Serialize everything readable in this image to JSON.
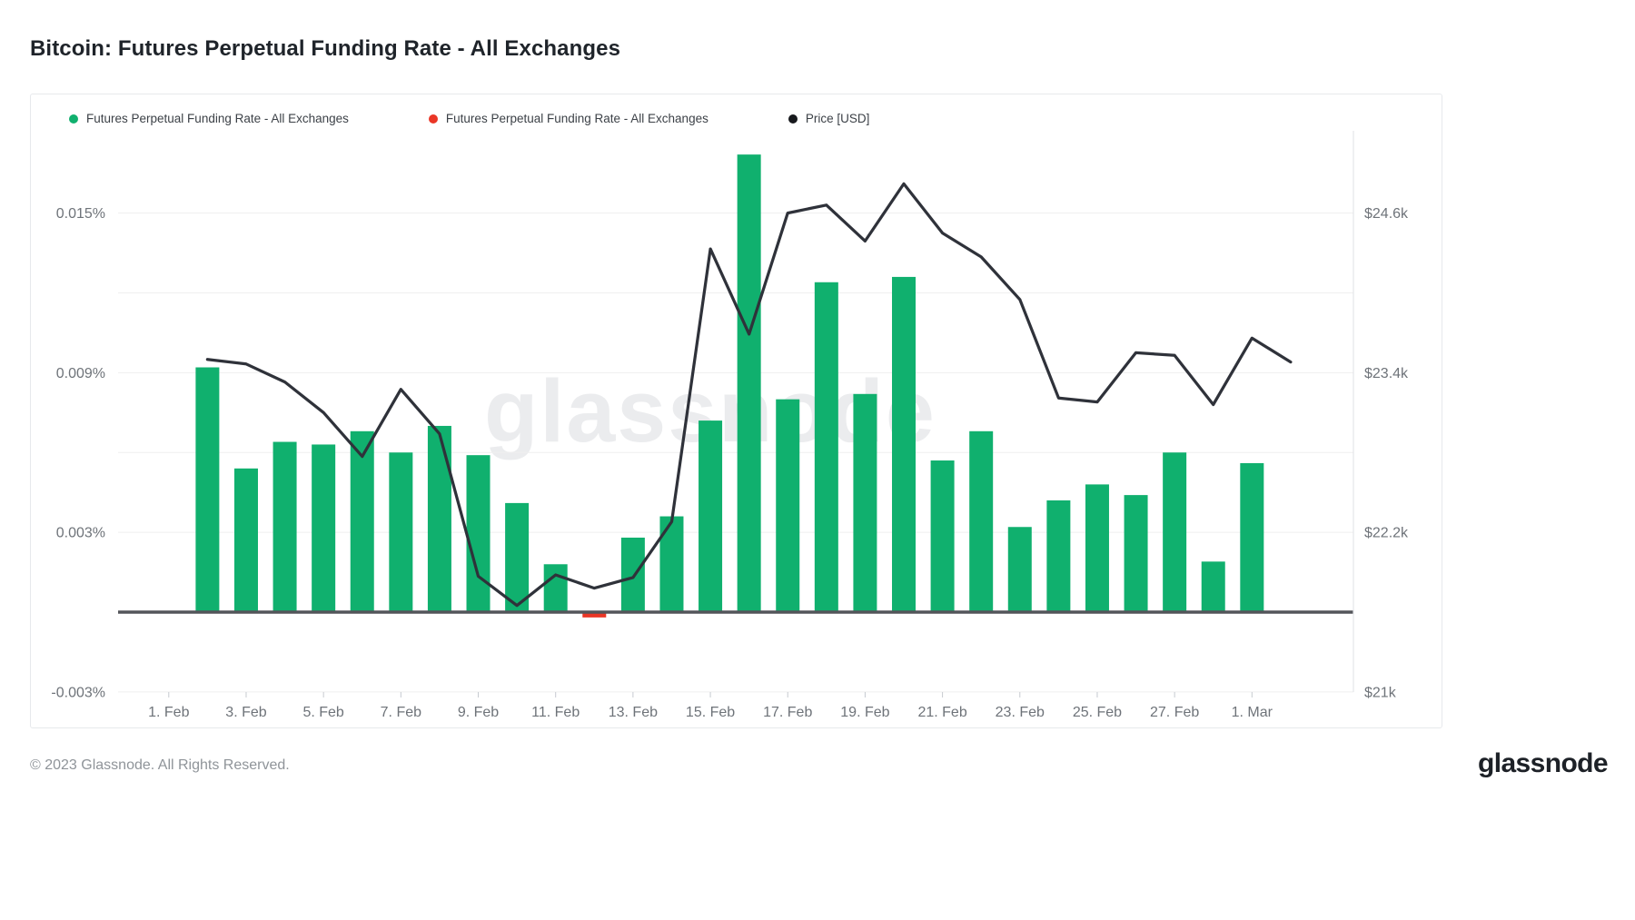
{
  "page": {
    "title": "Bitcoin: Futures Perpetual Funding Rate - All Exchanges",
    "footer_copyright": "© 2023 Glassnode. All Rights Reserved.",
    "brand_logo": "glassnode",
    "watermark": "glassnode"
  },
  "legend": {
    "items": [
      {
        "label": "Futures Perpetual Funding Rate - All Exchanges",
        "color": "#10b06e"
      },
      {
        "label": "Futures Perpetual Funding Rate - All Exchanges",
        "color": "#ea3626"
      },
      {
        "label": "Price [USD]",
        "color": "#17191d"
      }
    ]
  },
  "colors": {
    "bar_positive": "#10b06e",
    "bar_negative": "#ea3626",
    "price_line": "#2f323a",
    "gridline": "#efefef",
    "baseline": "#53555a",
    "plot_border": "#e4e6e9",
    "tick": "#c6cad0",
    "axis_text": "#6e7379",
    "watermark": "#ebecee"
  },
  "chart_data": {
    "type": "bar",
    "title": "Bitcoin: Futures Perpetual Funding Rate - All Exchanges",
    "grid": true,
    "legend_position": "top-left",
    "x_axis": {
      "tick_labels": [
        "1. Feb",
        "3. Feb",
        "5. Feb",
        "7. Feb",
        "9. Feb",
        "11. Feb",
        "13. Feb",
        "15. Feb",
        "17. Feb",
        "19. Feb",
        "21. Feb",
        "23. Feb",
        "25. Feb",
        "27. Feb",
        "1. Mar"
      ],
      "tick_day_offsets": [
        0,
        2,
        4,
        6,
        8,
        10,
        12,
        14,
        16,
        18,
        20,
        22,
        24,
        26,
        28
      ]
    },
    "left_axis": {
      "name": "Futures Perpetual Funding Rate - All Exchanges",
      "unit": "%",
      "tick_labels": [
        "0.015%",
        "0.009%",
        "0.003%",
        "-0.003%"
      ],
      "range_pct": [
        -0.0045,
        0.0181
      ]
    },
    "right_axis": {
      "name": "Price [USD]",
      "tick_labels": [
        "$24.6k",
        "$23.4k",
        "$22.2k",
        "$21k"
      ],
      "range_usd": [
        20400,
        25800
      ]
    },
    "y_gridlines": [
      {
        "pct": 0.015,
        "left": "0.015%",
        "right": "$24.6k"
      },
      {
        "pct": 0.012
      },
      {
        "pct": 0.009,
        "left": "0.009%",
        "right": "$23.4k"
      },
      {
        "pct": 0.006
      },
      {
        "pct": 0.003,
        "left": "0.003%",
        "right": "$22.2k"
      },
      {
        "pct": -0.003,
        "left": "-0.003%",
        "right": "$21k"
      }
    ],
    "series": [
      {
        "name": "Futures Perpetual Funding Rate - All Exchanges",
        "type": "bar",
        "unit": "percent",
        "dates": [
          "2. Feb",
          "3. Feb",
          "4. Feb",
          "5. Feb",
          "6. Feb",
          "7. Feb",
          "8. Feb",
          "9. Feb",
          "10. Feb",
          "11. Feb",
          "12. Feb",
          "13. Feb",
          "14. Feb",
          "15. Feb",
          "16. Feb",
          "17. Feb",
          "18. Feb",
          "19. Feb",
          "20. Feb",
          "21. Feb",
          "22. Feb",
          "23. Feb",
          "24. Feb",
          "25. Feb",
          "26. Feb",
          "27. Feb",
          "28. Feb",
          "1. Mar"
        ],
        "values_pct": [
          0.0092,
          0.0054,
          0.0064,
          0.0063,
          0.0068,
          0.006,
          0.007,
          0.0059,
          0.0041,
          0.0018,
          -0.0002,
          0.0028,
          0.0036,
          0.0072,
          0.0172,
          0.008,
          0.0124,
          0.0082,
          0.0126,
          0.0057,
          0.0068,
          0.0032,
          0.0042,
          0.0048,
          0.0044,
          0.006,
          0.0019,
          0.0056
        ]
      },
      {
        "name": "Price [USD]",
        "type": "line",
        "unit": "usd",
        "dates": [
          "2. Feb",
          "3. Feb",
          "4. Feb",
          "5. Feb",
          "6. Feb",
          "7. Feb",
          "8. Feb",
          "9. Feb",
          "10. Feb",
          "11. Feb",
          "12. Feb",
          "13. Feb",
          "14. Feb",
          "15. Feb",
          "16. Feb",
          "17. Feb",
          "18. Feb",
          "19. Feb",
          "20. Feb",
          "21. Feb",
          "22. Feb",
          "23. Feb",
          "24. Feb",
          "25. Feb",
          "26. Feb",
          "27. Feb",
          "28. Feb",
          "1. Mar",
          "2. Mar"
        ],
        "values": [
          23500,
          23465,
          23330,
          23100,
          22770,
          23275,
          22940,
          21870,
          21650,
          21880,
          21780,
          21860,
          22280,
          24330,
          23690,
          24600,
          24660,
          24390,
          24820,
          24450,
          24270,
          23950,
          23210,
          23180,
          23550,
          23530,
          23160,
          23660,
          23480
        ]
      }
    ]
  }
}
